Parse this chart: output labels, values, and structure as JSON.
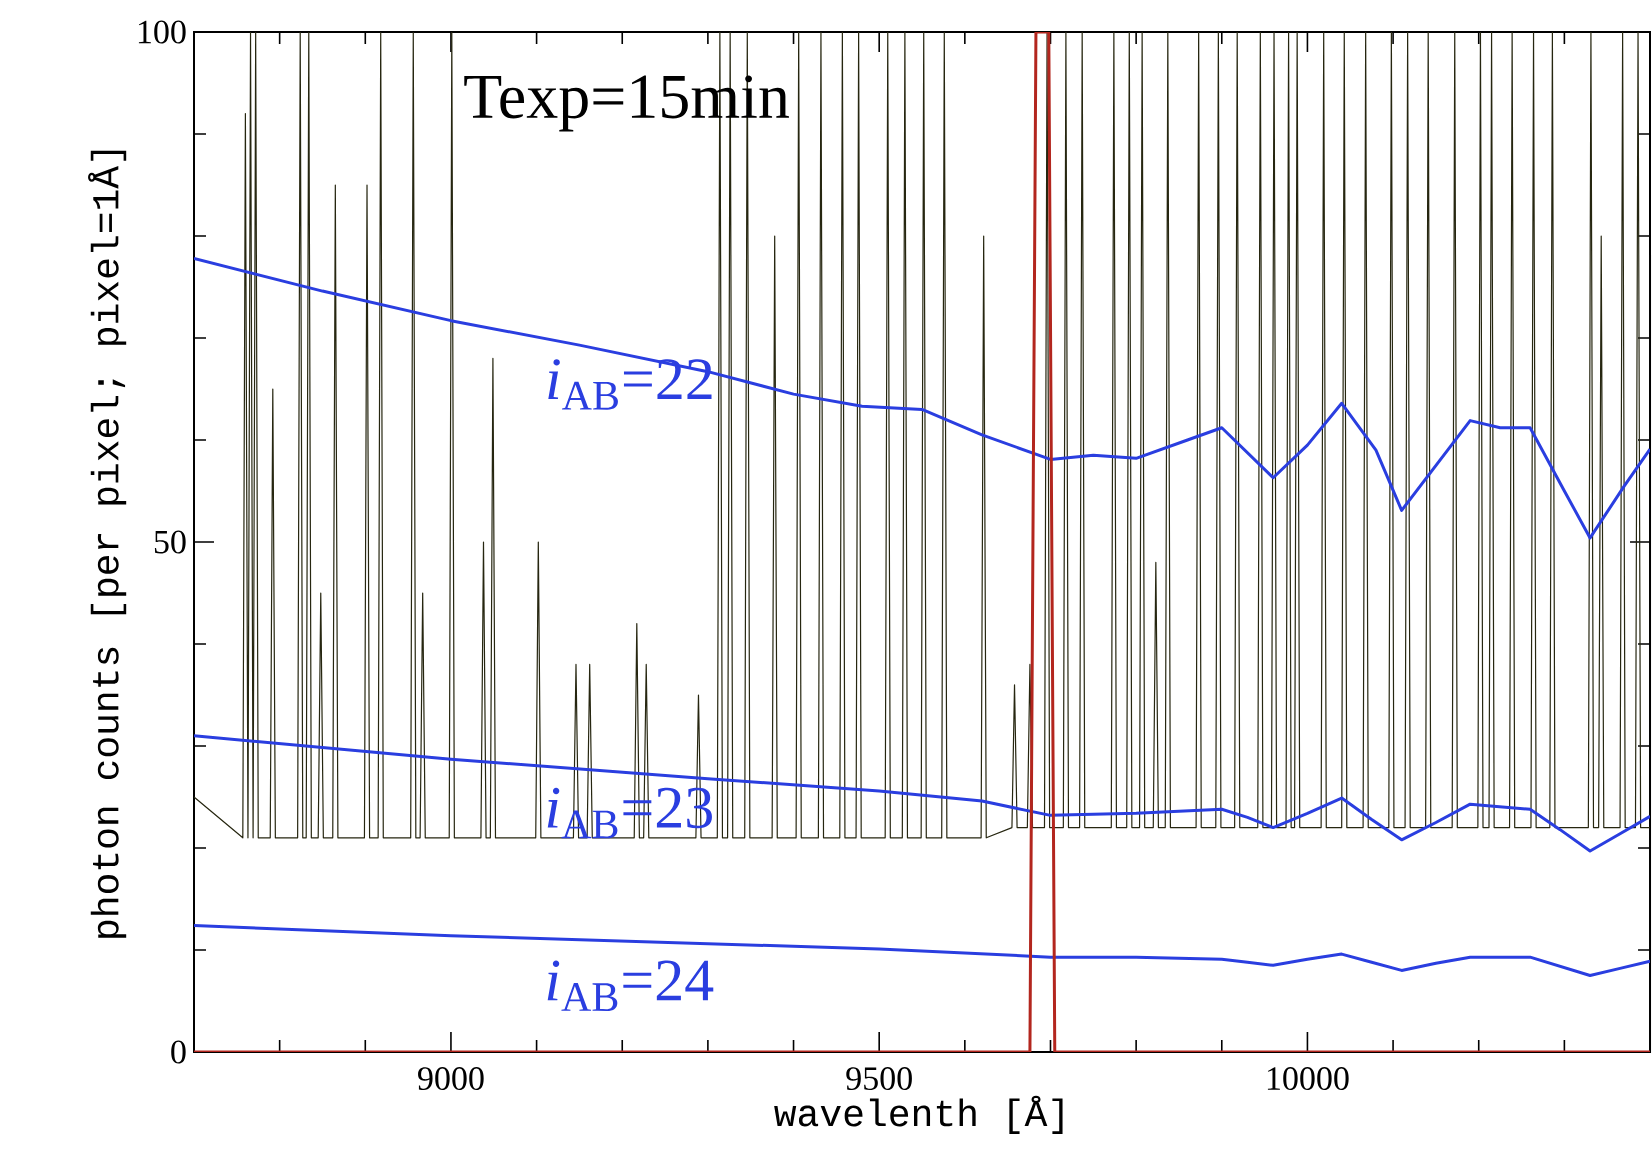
{
  "chart_data": {
    "type": "line",
    "xlabel": "wavelenth [Å]",
    "ylabel": "photon counts [per pixel; pixel=1Å]",
    "xlim": [
      8700,
      10400
    ],
    "ylim": [
      0,
      100
    ],
    "xticks": [
      {
        "value": 8800,
        "label": null
      },
      {
        "value": 8900,
        "label": null
      },
      9000,
      {
        "value": 9100,
        "label": null
      },
      {
        "value": 9200,
        "label": null
      },
      {
        "value": 9300,
        "label": null
      },
      {
        "value": 9400,
        "label": null
      },
      9500,
      {
        "value": 9600,
        "label": null
      },
      {
        "value": 9700,
        "label": null
      },
      {
        "value": 9800,
        "label": null
      },
      {
        "value": 9900,
        "label": null
      },
      10000,
      {
        "value": 10100,
        "label": null
      },
      {
        "value": 10200,
        "label": null
      },
      {
        "value": 10300,
        "label": null
      }
    ],
    "yticks": [
      0,
      {
        "value": 10,
        "label": null
      },
      {
        "value": 20,
        "label": null
      },
      {
        "value": 30,
        "label": null
      },
      {
        "value": 40,
        "label": null
      },
      50,
      {
        "value": 60,
        "label": null
      },
      {
        "value": 70,
        "label": null
      },
      {
        "value": 80,
        "label": null
      },
      {
        "value": 90,
        "label": null
      },
      100
    ],
    "annotations": [
      "Texp=15min"
    ],
    "series": [
      {
        "color": "#262610",
        "x": [
          8700,
          8757,
          8760,
          8763,
          8766,
          8769,
          8772,
          8775,
          8789,
          8792,
          8795,
          8821,
          8824,
          8827,
          8831,
          8834,
          8837,
          8845,
          8848,
          8851,
          8862,
          8865,
          8868,
          8899,
          8902,
          8905,
          8915,
          8918,
          8921,
          8953,
          8956,
          8959,
          8964,
          8967,
          8970,
          8998,
          9001,
          9004,
          9035,
          9038,
          9041,
          9046,
          9049,
          9052,
          9099,
          9102,
          9105,
          9143,
          9146,
          9149,
          9159,
          9162,
          9165,
          9214,
          9217,
          9220,
          9225,
          9228,
          9231,
          9286,
          9289,
          9292,
          9311,
          9314,
          9317,
          9323,
          9326,
          9329,
          9343,
          9346,
          9349,
          9375,
          9378,
          9381,
          9403,
          9406,
          9409,
          9429,
          9432,
          9435,
          9454,
          9457,
          9460,
          9473,
          9476,
          9479,
          9507,
          9510,
          9513,
          9527,
          9530,
          9533,
          9549,
          9552,
          9555,
          9573,
          9576,
          9579,
          9619,
          9622,
          9625,
          9655,
          9658,
          9661,
          9673,
          9676,
          9679,
          9693,
          9696,
          9699,
          9715,
          9718,
          9721,
          9734,
          9737,
          9740,
          9771,
          9774,
          9777,
          9789,
          9792,
          9795,
          9804,
          9807,
          9810,
          9820,
          9823,
          9826,
          9834,
          9837,
          9840,
          9870,
          9873,
          9876,
          9893,
          9896,
          9899,
          9915,
          9918,
          9921,
          9942,
          9945,
          9948,
          9958,
          9961,
          9964,
          9975,
          9978,
          9981,
          9985,
          9988,
          9991,
          10016,
          10019,
          10022,
          10040,
          10043,
          10046,
          10065,
          10068,
          10071,
          10095,
          10098,
          10101,
          10114,
          10117,
          10120,
          10138,
          10141,
          10144,
          10169,
          10172,
          10175,
          10199,
          10202,
          10205,
          10212,
          10215,
          10218,
          10236,
          10239,
          10242,
          10261,
          10264,
          10267,
          10283,
          10286,
          10289,
          10328,
          10331,
          10334,
          10340,
          10343,
          10346,
          10365,
          10368,
          10371,
          10383,
          10386,
          10389,
          10400
        ],
        "values": [
          25,
          21,
          92,
          21,
          100,
          21,
          100,
          21,
          21,
          65,
          21,
          21,
          100,
          21,
          21,
          100,
          21,
          21,
          45,
          21,
          21,
          85,
          21,
          21,
          85,
          21,
          21,
          100,
          21,
          21,
          100,
          21,
          21,
          45,
          21,
          21,
          100,
          21,
          21,
          50,
          21,
          21,
          68,
          21,
          21,
          50,
          21,
          21,
          38,
          21,
          21,
          38,
          21,
          21,
          42,
          21,
          21,
          38,
          21,
          21,
          35,
          21,
          21,
          100,
          21,
          21,
          100,
          21,
          21,
          100,
          21,
          21,
          80,
          21,
          21,
          100,
          21,
          21,
          100,
          21,
          21,
          100,
          21,
          21,
          100,
          21,
          21,
          100,
          21,
          21,
          100,
          21,
          21,
          100,
          21,
          21,
          100,
          21,
          21,
          80,
          21,
          22,
          36,
          22,
          22,
          38,
          22,
          22,
          100,
          22,
          22,
          100,
          22,
          22,
          100,
          22,
          22,
          100,
          22,
          22,
          100,
          22,
          22,
          100,
          22,
          22,
          48,
          22,
          22,
          100,
          22,
          22,
          100,
          22,
          22,
          100,
          22,
          22,
          100,
          22,
          22,
          100,
          22,
          22,
          100,
          22,
          22,
          100,
          22,
          22,
          100,
          22,
          22,
          100,
          22,
          22,
          100,
          22,
          22,
          100,
          22,
          22,
          100,
          22,
          22,
          100,
          22,
          22,
          100,
          22,
          22,
          100,
          22,
          22,
          100,
          22,
          22,
          100,
          22,
          22,
          100,
          22,
          22,
          100,
          22,
          22,
          100,
          22,
          22,
          100,
          22,
          22,
          80,
          22,
          22,
          100,
          22,
          22,
          100,
          22,
          22
        ]
      },
      {
        "name": "*i*$_{AB}$=22",
        "color": "#2a3ee0",
        "x": [
          8700,
          8850,
          9000,
          9150,
          9300,
          9400,
          9480,
          9550,
          9620,
          9700,
          9750,
          9800,
          9860,
          9900,
          9960,
          10000,
          10040,
          10080,
          10110,
          10150,
          10190,
          10225,
          10260,
          10300,
          10330,
          10370,
          10400
        ],
        "values": [
          77.8,
          74.6,
          71.7,
          69.3,
          66.7,
          64.5,
          63.3,
          63.0,
          60.5,
          58.1,
          58.5,
          58.2,
          60.0,
          61.2,
          56.3,
          59.5,
          63.6,
          59.0,
          53.1,
          57.5,
          61.9,
          61.2,
          61.2,
          55.0,
          50.4,
          55.5,
          59.1
        ]
      },
      {
        "name": "*i*$_{AB}$=23",
        "color": "#2a3ee0",
        "x": [
          8700,
          9000,
          9300,
          9500,
          9620,
          9700,
          9800,
          9900,
          9930,
          9960,
          10000,
          10040,
          10075,
          10110,
          10150,
          10190,
          10260,
          10295,
          10330,
          10365,
          10400
        ],
        "values": [
          31.0,
          28.7,
          26.8,
          25.6,
          24.6,
          23.2,
          23.4,
          23.8,
          23.0,
          22.0,
          23.4,
          24.9,
          22.8,
          20.8,
          22.5,
          24.3,
          23.8,
          21.8,
          19.7,
          21.4,
          23.1
        ]
      },
      {
        "name": "*i*$_{AB}$=24",
        "color": "#2a3ee0",
        "x": [
          8700,
          9000,
          9500,
          9700,
          9800,
          9900,
          9930,
          9960,
          10000,
          10040,
          10075,
          10110,
          10150,
          10190,
          10260,
          10295,
          10330,
          10365,
          10400
        ],
        "values": [
          12.4,
          11.4,
          10.1,
          9.3,
          9.3,
          9.1,
          8.8,
          8.5,
          9.1,
          9.6,
          8.8,
          8.0,
          8.7,
          9.3,
          9.3,
          8.4,
          7.5,
          8.2,
          8.9
        ]
      },
      {
        "color": "#b3261e",
        "x": [
          8700,
          9676,
          9683,
          9698,
          9705,
          10400
        ],
        "values": [
          0,
          0,
          100,
          100,
          0,
          0
        ]
      }
    ]
  }
}
